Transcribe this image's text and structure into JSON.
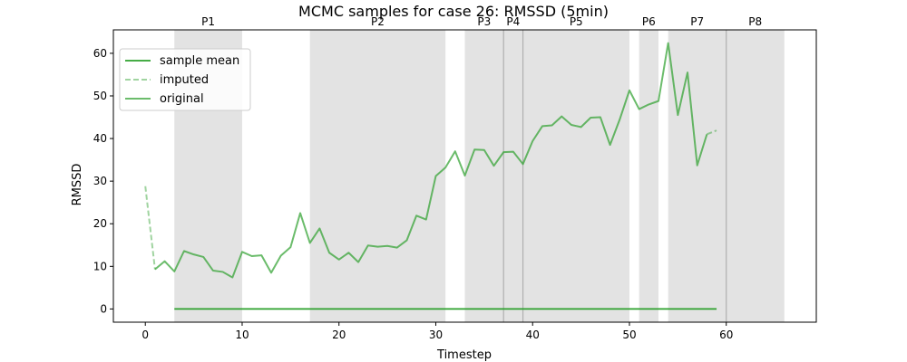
{
  "chart_data": {
    "type": "line",
    "title": "MCMC samples for case 26: RMSSD (5min)",
    "xlabel": "Timestep",
    "ylabel": "RMSSD",
    "xlim": [
      -3.3,
      69.3
    ],
    "ylim": [
      -3.1,
      65.5
    ],
    "xticks": [
      0,
      10,
      20,
      30,
      40,
      50,
      60
    ],
    "yticks": [
      0,
      10,
      20,
      30,
      40,
      50,
      60
    ],
    "grid": false,
    "legend_position": "top-left",
    "colors": {
      "sample_mean": "#2ca02c",
      "original": "#2ca02c",
      "imputed": "#2ca02c",
      "phase_shade": "#d9d9d9",
      "phase_boundary": "#b0b0b0"
    },
    "phases": [
      {
        "label": "P1",
        "start": 3,
        "end": 10
      },
      {
        "label": "P2",
        "start": 17,
        "end": 31
      },
      {
        "label": "P3",
        "start": 33,
        "end": 37
      },
      {
        "label": "P4",
        "start": 37,
        "end": 39
      },
      {
        "label": "P5",
        "start": 39,
        "end": 50
      },
      {
        "label": "P6",
        "start": 51,
        "end": 53
      },
      {
        "label": "P7",
        "start": 54,
        "end": 60
      },
      {
        "label": "P8",
        "start": 60,
        "end": 66
      }
    ],
    "series": [
      {
        "name": "sample mean",
        "style": "solid",
        "x": [
          3,
          59
        ],
        "y": [
          0,
          0
        ]
      },
      {
        "name": "imputed",
        "style": "dashed",
        "segments": [
          {
            "x": [
              0,
              1
            ],
            "y": [
              28.8,
              9.3
            ]
          },
          {
            "x": [
              58,
              59
            ],
            "y": [
              41.0,
              41.9
            ]
          }
        ]
      },
      {
        "name": "original",
        "style": "solid",
        "x": [
          1,
          2,
          3,
          4,
          5,
          6,
          7,
          8,
          9,
          10,
          11,
          12,
          13,
          14,
          15,
          16,
          17,
          18,
          19,
          20,
          21,
          22,
          23,
          24,
          25,
          26,
          27,
          28,
          29,
          30,
          31,
          32,
          33,
          34,
          35,
          36,
          37,
          38,
          39,
          40,
          41,
          42,
          43,
          44,
          45,
          46,
          47,
          48,
          49,
          50,
          51,
          52,
          53,
          54,
          55,
          56,
          57,
          58
        ],
        "y": [
          9.3,
          11.2,
          8.8,
          13.6,
          12.8,
          12.2,
          9.0,
          8.7,
          7.4,
          13.4,
          12.4,
          12.6,
          8.5,
          12.5,
          14.5,
          22.5,
          15.5,
          18.9,
          13.2,
          11.6,
          13.2,
          11.0,
          14.9,
          14.6,
          14.8,
          14.4,
          16.1,
          21.9,
          21.0,
          31.2,
          33.2,
          37.0,
          31.3,
          37.4,
          37.3,
          33.6,
          36.8,
          36.9,
          34.0,
          39.4,
          42.9,
          43.1,
          45.2,
          43.2,
          42.7,
          44.9,
          45.0,
          38.5,
          44.5,
          51.3,
          46.9,
          48.0,
          48.8,
          62.4,
          45.5,
          55.5,
          33.7,
          41.0
        ]
      }
    ]
  }
}
